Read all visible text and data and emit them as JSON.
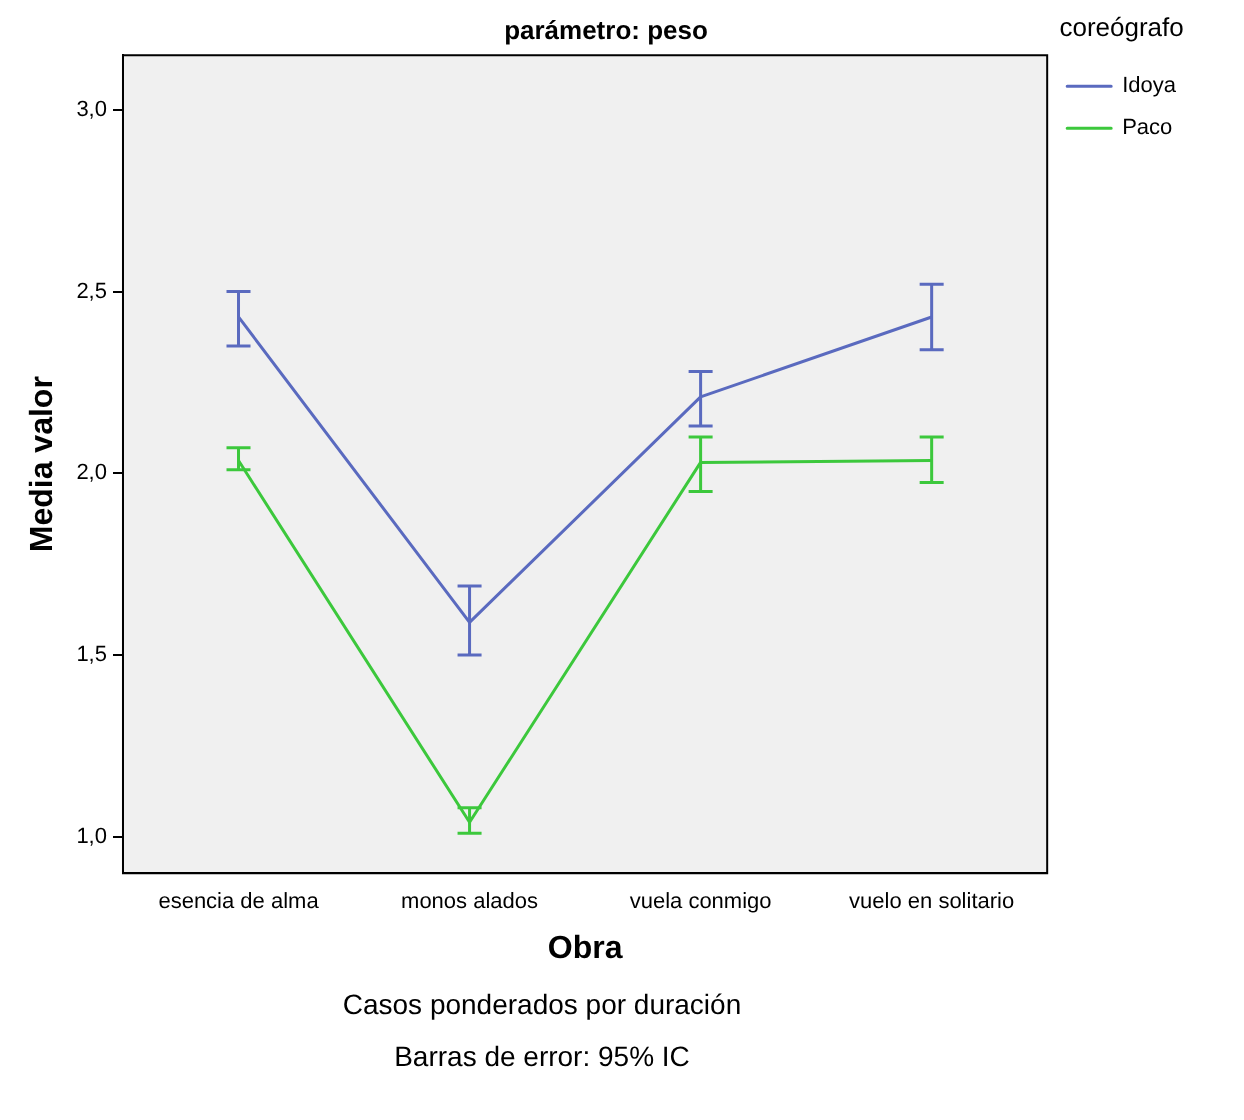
{
  "chart_data": {
    "type": "line",
    "title": "parámetro: peso",
    "xlabel": "Obra",
    "ylabel": "Media valor",
    "legend_title": "coreógrafo",
    "legend": "top right",
    "grid": false,
    "line_style": "solid",
    "categories": [
      "esencia de alma",
      "monos alados",
      "vuela conmigo",
      "vuelo en solitario"
    ],
    "ylim": [
      0.9,
      3.15
    ],
    "yticks": [
      {
        "value": 1,
        "label": "1,0"
      },
      {
        "value": 1.5,
        "label": "1,5"
      },
      {
        "value": 2,
        "label": "2,0"
      },
      {
        "value": 2.5,
        "label": "2,5"
      },
      {
        "value": 3,
        "label": "3,0"
      }
    ],
    "series": [
      {
        "name": "Idoya",
        "color": "#5a6abf",
        "values": [
          2.43,
          1.59,
          2.21,
          2.43
        ],
        "errors": [
          [
            2.35,
            2.5
          ],
          [
            1.5,
            1.69
          ],
          [
            2.13,
            2.28
          ],
          [
            2.34,
            2.52
          ]
        ]
      },
      {
        "name": "Paco",
        "color": "#3cc83c",
        "values": [
          2.035,
          1.04,
          2.03,
          2.035
        ],
        "errors": [
          [
            2.01,
            2.07
          ],
          [
            1.01,
            1.08
          ],
          [
            1.95,
            2.1
          ],
          [
            1.975,
            2.1
          ]
        ]
      }
    ],
    "annotations": [
      "Casos ponderados por duración",
      "Barras de error: 95% IC"
    ]
  }
}
